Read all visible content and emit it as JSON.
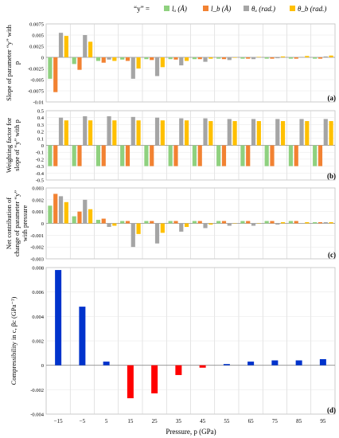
{
  "legend": {
    "prefix": "“y” =",
    "items": [
      {
        "label": "lₐ (Å)",
        "color": "#8fd17f"
      },
      {
        "label": "l_b (Å)",
        "color": "#f28232"
      },
      {
        "label": "θₐ (rad.)",
        "color": "#a5a5a5"
      },
      {
        "label": "θ_b (rad.)",
        "color": "#ffc000"
      }
    ]
  },
  "xaxis": {
    "label": "Pressure, p (GPa)",
    "categories": [
      "−15",
      "−5",
      "5",
      "15",
      "25",
      "35",
      "45",
      "55",
      "65",
      "75",
      "85",
      "95"
    ]
  },
  "chart_data": [
    {
      "type": "bar",
      "panel": "(a)",
      "ylabel": "Slope of parameter “y” with p",
      "ylim": [
        -0.01,
        0.0075
      ],
      "yticks": [
        "0.0075",
        "0.005",
        "0.0025",
        "0",
        "-0.0025",
        "-0.005",
        "-0.0075",
        "-0.01"
      ],
      "tickValues": [
        0.0075,
        0.005,
        0.0025,
        0,
        -0.0025,
        -0.005,
        -0.0075,
        -0.01
      ],
      "series": [
        {
          "values": [
            -0.0048,
            -0.0015,
            -0.0008,
            -0.0005,
            -0.0004,
            -0.0004,
            -0.0004,
            -0.0003,
            -0.0003,
            -0.0003,
            -0.0003,
            -0.0003
          ]
        },
        {
          "values": [
            -0.0078,
            -0.0028,
            -0.0012,
            -0.0008,
            -0.0006,
            -0.0005,
            -0.0004,
            -0.0004,
            -0.0003,
            -0.0003,
            -0.0003,
            -0.0003
          ]
        },
        {
          "values": [
            0.0055,
            0.005,
            -0.0005,
            -0.0048,
            -0.0042,
            -0.0018,
            -0.001,
            -0.0006,
            -0.0004,
            -0.0002,
            0.0001,
            0.0002
          ]
        },
        {
          "values": [
            0.0048,
            0.0035,
            -0.0008,
            -0.0025,
            -0.0022,
            -0.0008,
            -0.0003,
            -0.0001,
            0.0001,
            0.0002,
            0.0003,
            0.0004
          ]
        }
      ]
    },
    {
      "type": "bar",
      "panel": "(b)",
      "ylabel": "Weighting factor for slope of “y” with p",
      "ylim": [
        -0.5,
        0.5
      ],
      "yticks": [
        "0.5",
        "0.4",
        "0.3",
        "0.2",
        "0.1",
        "0",
        "-0.1",
        "-0.2",
        "-0.3",
        "-0.4",
        "-0.5"
      ],
      "tickValues": [
        0.5,
        0.4,
        0.3,
        0.2,
        0.1,
        0,
        -0.1,
        -0.2,
        -0.3,
        -0.4,
        -0.5
      ],
      "series": [
        {
          "values": [
            -0.3,
            -0.3,
            -0.3,
            -0.3,
            -0.3,
            -0.3,
            -0.3,
            -0.3,
            -0.3,
            -0.3,
            -0.3,
            -0.3
          ]
        },
        {
          "values": [
            -0.3,
            -0.3,
            -0.3,
            -0.3,
            -0.3,
            -0.3,
            -0.3,
            -0.3,
            -0.3,
            -0.3,
            -0.3,
            -0.3
          ]
        },
        {
          "values": [
            0.4,
            0.42,
            0.42,
            0.41,
            0.4,
            0.39,
            0.39,
            0.38,
            0.38,
            0.38,
            0.38,
            0.38
          ]
        },
        {
          "values": [
            0.36,
            0.36,
            0.36,
            0.36,
            0.36,
            0.36,
            0.35,
            0.35,
            0.35,
            0.35,
            0.35,
            0.35
          ]
        }
      ]
    },
    {
      "type": "bar",
      "panel": "(c)",
      "ylabel": "Net contribution of change of parameter “y” with pressure",
      "ylim": [
        -0.003,
        0.003
      ],
      "yticks": [
        "0.003",
        "0.002",
        "0.001",
        "0",
        "-0.001",
        "-0.002",
        "-0.003"
      ],
      "tickValues": [
        0.003,
        0.002,
        0.001,
        0,
        -0.001,
        -0.002,
        -0.003
      ],
      "series": [
        {
          "values": [
            0.0015,
            0.0006,
            0.0003,
            0.0002,
            0.0002,
            0.0002,
            0.0002,
            0.0002,
            0.0002,
            0.0002,
            0.0002,
            0.0001
          ]
        },
        {
          "values": [
            0.0025,
            0.001,
            0.0004,
            0.0002,
            0.0002,
            0.0002,
            0.0002,
            0.0002,
            0.0002,
            0.0002,
            0.0002,
            0.0001
          ]
        },
        {
          "values": [
            0.0023,
            0.002,
            -0.0003,
            -0.002,
            -0.0017,
            -0.0007,
            -0.0004,
            -0.0002,
            -0.0002,
            -0.0001,
            0.0,
            0.0001
          ]
        },
        {
          "values": [
            0.0018,
            0.0012,
            -0.0002,
            -0.0009,
            -0.0008,
            -0.0003,
            -0.0001,
            0.0,
            0.0,
            0.0001,
            0.0001,
            0.0001
          ]
        }
      ]
    },
    {
      "type": "bar",
      "panel": "(d)",
      "ylabel": "Compressibility in c, βc (GPa⁻¹)",
      "ylim": [
        -0.004,
        0.008
      ],
      "yticks": [
        "0.008",
        "0.006",
        "0.004",
        "0.002",
        "0",
        "-0.002",
        "-0.004"
      ],
      "tickValues": [
        0.008,
        0.006,
        0.004,
        0.002,
        0,
        -0.002,
        -0.004
      ],
      "positiveColor": "#0033cc",
      "negativeColor": "#ff0000",
      "series": [
        {
          "values": [
            0.0078,
            0.0048,
            0.0003,
            -0.0027,
            -0.0023,
            -0.0008,
            -0.0002,
            0.0001,
            0.0003,
            0.0004,
            0.0004,
            0.0005
          ]
        }
      ]
    }
  ]
}
